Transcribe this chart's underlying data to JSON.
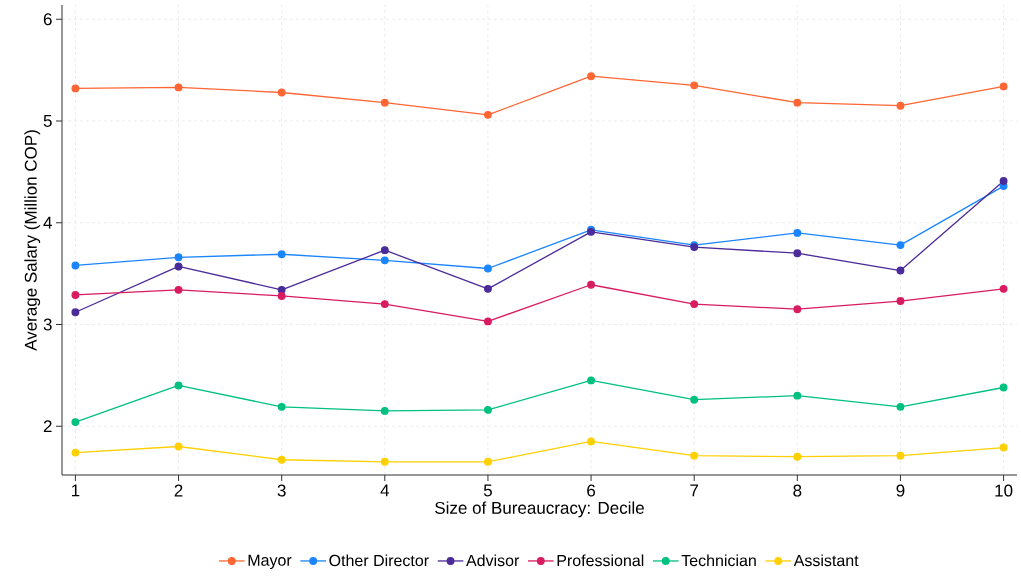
{
  "chart_data": {
    "type": "line",
    "xlabel": "Size of Bureaucracy: Decile",
    "ylabel": "Average Salary (Million COP)",
    "x": [
      1,
      2,
      3,
      4,
      5,
      6,
      7,
      8,
      9,
      10
    ],
    "series": [
      {
        "name": "Mayor",
        "color": "#ff6633",
        "values": [
          5.32,
          5.33,
          5.28,
          5.18,
          5.06,
          5.44,
          5.35,
          5.18,
          5.15,
          5.34
        ]
      },
      {
        "name": "Other Director",
        "color": "#1a85ff",
        "values": [
          3.58,
          3.66,
          3.69,
          3.63,
          3.55,
          3.93,
          3.78,
          3.9,
          3.78,
          4.36
        ]
      },
      {
        "name": "Advisor",
        "color": "#4b2a9a",
        "values": [
          3.12,
          3.57,
          3.34,
          3.73,
          3.35,
          3.91,
          3.76,
          3.7,
          3.53,
          4.41
        ]
      },
      {
        "name": "Professional",
        "color": "#d81b60",
        "values": [
          3.29,
          3.34,
          3.28,
          3.2,
          3.03,
          3.39,
          3.2,
          3.15,
          3.23,
          3.35
        ]
      },
      {
        "name": "Technician",
        "color": "#00c07f",
        "values": [
          2.04,
          2.4,
          2.19,
          2.15,
          2.16,
          2.45,
          2.26,
          2.3,
          2.19,
          2.38
        ]
      },
      {
        "name": "Assistant",
        "color": "#ffd000",
        "values": [
          1.74,
          1.8,
          1.67,
          1.65,
          1.65,
          1.85,
          1.71,
          1.7,
          1.71,
          1.79
        ]
      }
    ],
    "xlim": [
      0.87,
      10.13
    ],
    "ylim": [
      1.52,
      6.14
    ],
    "xticks": [
      1,
      2,
      3,
      4,
      5,
      6,
      7,
      8,
      9,
      10
    ],
    "yticks": [
      2,
      3,
      4,
      5,
      6
    ],
    "grid": true,
    "legend": "bottom",
    "marker": "circle",
    "line_style": "solid"
  }
}
